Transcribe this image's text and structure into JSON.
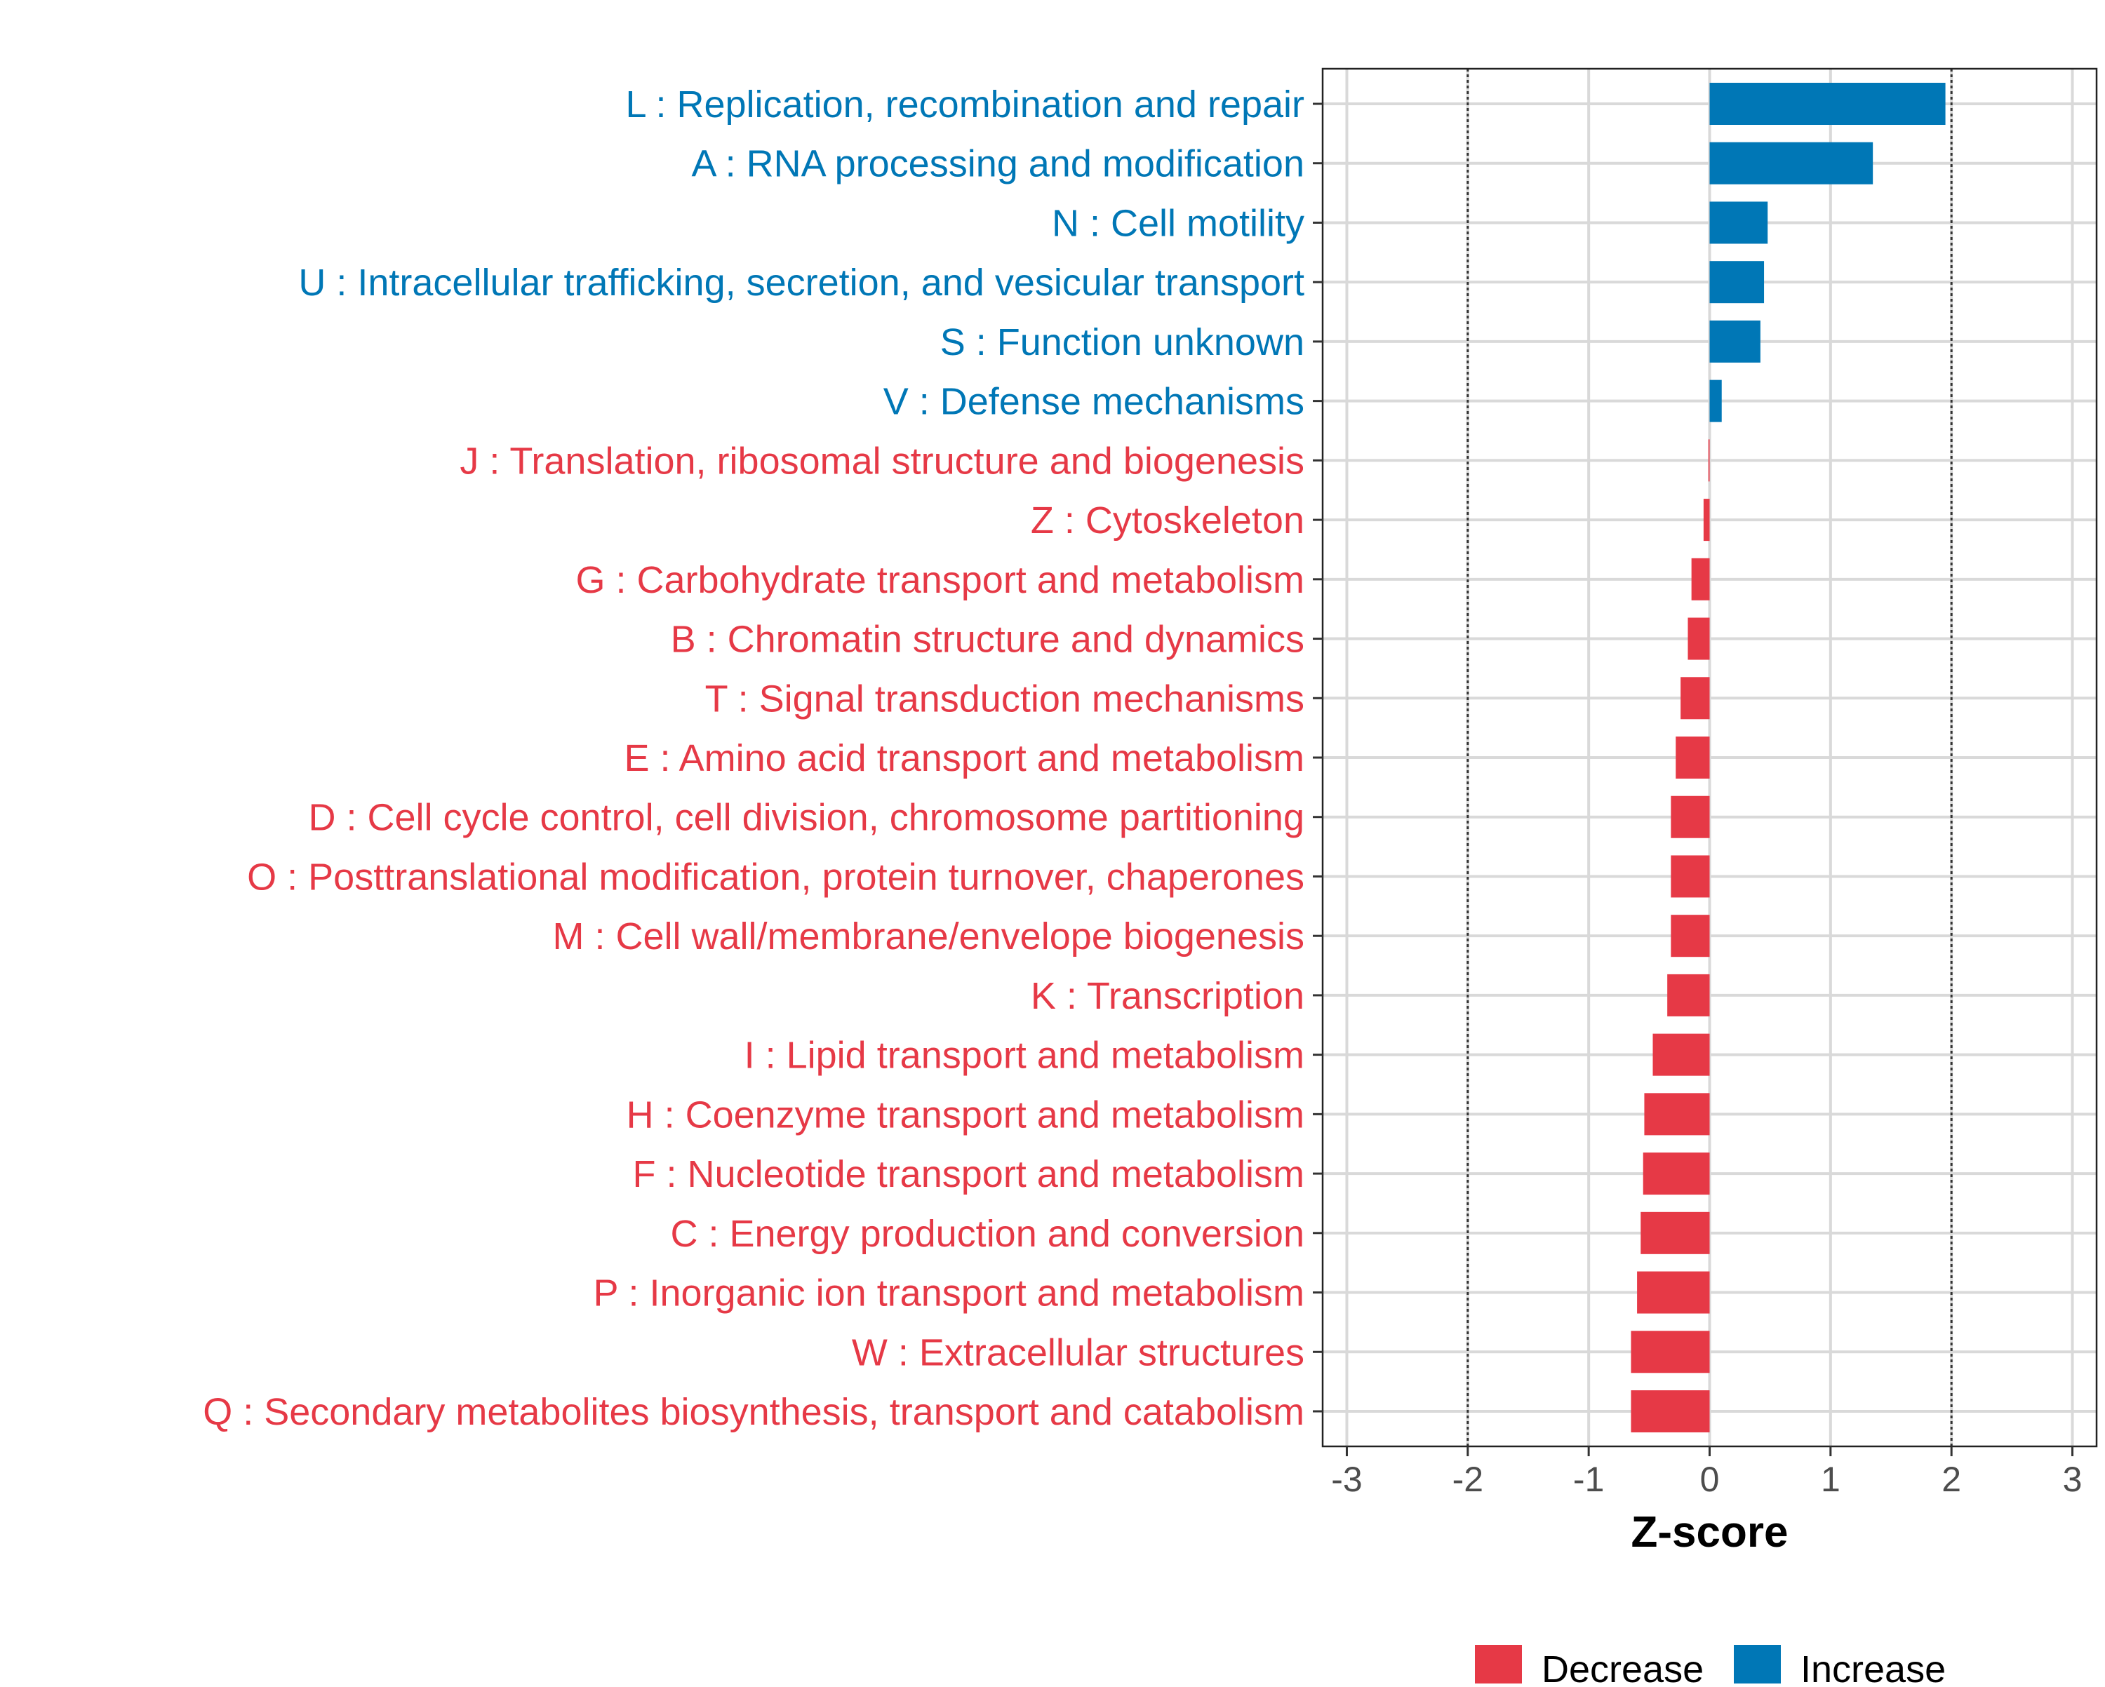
{
  "chart_data": {
    "type": "bar",
    "orientation": "horizontal",
    "xlabel": "Z-score",
    "ylabel": "",
    "xlim": [
      -3.2,
      3.2
    ],
    "xticks": [
      -3,
      -2,
      -1,
      0,
      1,
      2,
      3
    ],
    "xtick_labels": [
      "-3",
      "-2",
      "-1",
      "0",
      "1",
      "2",
      "3"
    ],
    "reference_lines": [
      -2,
      2
    ],
    "grid": true,
    "colors": {
      "Decrease": "#e63946",
      "Increase": "#0077b6"
    },
    "legend": {
      "placement": "bottom",
      "entries": [
        {
          "label": "Decrease",
          "color": "#e63946"
        },
        {
          "label": "Increase",
          "color": "#0077b6"
        }
      ]
    },
    "bars": [
      {
        "label": "L : Replication, recombination and repair",
        "value": 1.95,
        "group": "Increase"
      },
      {
        "label": "A : RNA processing and modification",
        "value": 1.35,
        "group": "Increase"
      },
      {
        "label": "N : Cell motility",
        "value": 0.48,
        "group": "Increase"
      },
      {
        "label": "U : Intracellular trafficking, secretion, and vesicular transport",
        "value": 0.45,
        "group": "Increase"
      },
      {
        "label": "S : Function unknown",
        "value": 0.42,
        "group": "Increase"
      },
      {
        "label": "V : Defense mechanisms",
        "value": 0.1,
        "group": "Increase"
      },
      {
        "label": "J : Translation, ribosomal structure and biogenesis",
        "value": -0.01,
        "group": "Decrease"
      },
      {
        "label": "Z : Cytoskeleton",
        "value": -0.05,
        "group": "Decrease"
      },
      {
        "label": "G : Carbohydrate transport and metabolism",
        "value": -0.15,
        "group": "Decrease"
      },
      {
        "label": "B : Chromatin structure and dynamics",
        "value": -0.18,
        "group": "Decrease"
      },
      {
        "label": "T : Signal transduction mechanisms",
        "value": -0.24,
        "group": "Decrease"
      },
      {
        "label": "E : Amino acid transport and metabolism",
        "value": -0.28,
        "group": "Decrease"
      },
      {
        "label": "D : Cell cycle control, cell division, chromosome partitioning",
        "value": -0.32,
        "group": "Decrease"
      },
      {
        "label": "O : Posttranslational modification, protein turnover, chaperones",
        "value": -0.32,
        "group": "Decrease"
      },
      {
        "label": "M : Cell wall/membrane/envelope biogenesis",
        "value": -0.32,
        "group": "Decrease"
      },
      {
        "label": "K : Transcription",
        "value": -0.35,
        "group": "Decrease"
      },
      {
        "label": "I : Lipid transport and metabolism",
        "value": -0.47,
        "group": "Decrease"
      },
      {
        "label": "H : Coenzyme transport and metabolism",
        "value": -0.54,
        "group": "Decrease"
      },
      {
        "label": "F : Nucleotide transport and metabolism",
        "value": -0.55,
        "group": "Decrease"
      },
      {
        "label": "C : Energy production and conversion",
        "value": -0.57,
        "group": "Decrease"
      },
      {
        "label": "P : Inorganic ion transport and metabolism",
        "value": -0.6,
        "group": "Decrease"
      },
      {
        "label": "W : Extracellular structures",
        "value": -0.65,
        "group": "Decrease"
      },
      {
        "label": "Q : Secondary metabolites biosynthesis, transport and catabolism",
        "value": -0.65,
        "group": "Decrease"
      }
    ]
  }
}
